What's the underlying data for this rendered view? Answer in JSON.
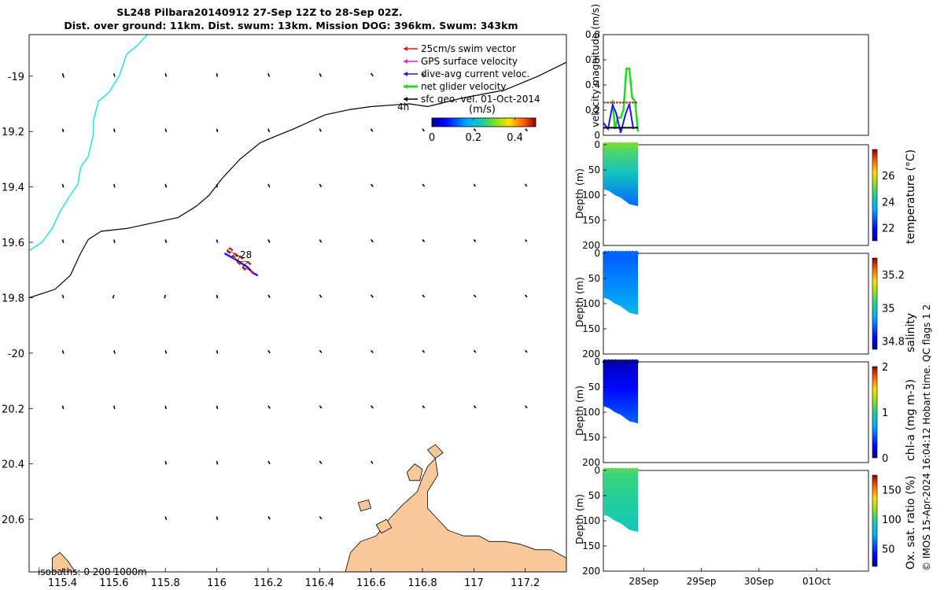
{
  "title": {
    "line1": "SL248 Pilbara20140912 27-Sep 12Z to 28-Sep 02Z.",
    "line2": "Dist. over ground: 11km. Dist. swum: 13km. Mission DOG: 396km. Swum: 343km"
  },
  "footer": "© IMOS 15-Apr-2024 16:04:12 Hobart time. QC flags 1  2",
  "colors": {
    "sst_contour": "#33e0e0",
    "track_red": "#ee1111",
    "track_blue": "#1a1aee",
    "net_green": "#22dd22",
    "land": "#f9c89b",
    "gps_magenta": "#dd22dd"
  },
  "chart_data": [
    {
      "type": "map",
      "name": "glider-track-map",
      "xlim": [
        115.27,
        117.36
      ],
      "ylim": [
        -20.79,
        -18.85
      ],
      "x_ticks": [
        115.4,
        115.6,
        115.8,
        116,
        116.2,
        116.4,
        116.6,
        116.8,
        117,
        117.2
      ],
      "x_tick_labels": [
        "115.4",
        "115.6",
        "115.8",
        "116",
        "116.2",
        "116.4",
        "116.6",
        "116.8",
        "117",
        "117.2"
      ],
      "y_ticks": [
        -19,
        -19.2,
        -19.4,
        -19.6,
        -19.8,
        -20,
        -20.2,
        -20.4,
        -20.6
      ],
      "y_tick_labels": [
        "-19",
        "19.2",
        "19.4",
        "19.6",
        "19.8",
        "-20",
        "20.2",
        "20.4",
        "20.6"
      ],
      "legend": [
        {
          "label": "25cm/s swim vector",
          "color": "#ee1111"
        },
        {
          "label": "GPS surface velocity",
          "color": "#dd22dd"
        },
        {
          "label": "dive-avg current veloc.",
          "color": "#1a1aee"
        },
        {
          "label": "net glider velocity",
          "color": "#22dd22"
        },
        {
          "label": "sfc geo. vel. 01-Oct-2014",
          "color": "#000000"
        }
      ],
      "colorbar": {
        "label": "(m/s)",
        "ticks": [
          "0",
          "0.2",
          "0.4"
        ],
        "range": [
          0,
          0.5
        ]
      },
      "annotations": {
        "time_label": "4h",
        "day_label": "28",
        "isobaths": "isobaths: 0   200   1000m"
      },
      "black_contour": [
        [
          115.27,
          -19.8
        ],
        [
          115.37,
          -19.77
        ],
        [
          115.43,
          -19.72
        ],
        [
          115.47,
          -19.64
        ],
        [
          115.5,
          -19.59
        ],
        [
          115.55,
          -19.56
        ],
        [
          115.65,
          -19.55
        ],
        [
          115.75,
          -19.53
        ],
        [
          115.85,
          -19.51
        ],
        [
          115.92,
          -19.47
        ],
        [
          115.97,
          -19.43
        ],
        [
          116.02,
          -19.37
        ],
        [
          116.09,
          -19.3
        ],
        [
          116.17,
          -19.24
        ],
        [
          116.22,
          -19.22
        ],
        [
          116.3,
          -19.19
        ],
        [
          116.42,
          -19.14
        ],
        [
          116.52,
          -19.12
        ],
        [
          116.6,
          -19.11
        ],
        [
          116.75,
          -19.1
        ],
        [
          116.82,
          -19.11
        ],
        [
          116.95,
          -19.08
        ],
        [
          117.12,
          -19.05
        ],
        [
          117.25,
          -19.0
        ],
        [
          117.36,
          -18.95
        ]
      ],
      "cyan_contour": [
        [
          115.27,
          -19.63
        ],
        [
          115.32,
          -19.6
        ],
        [
          115.36,
          -19.55
        ],
        [
          115.39,
          -19.49
        ],
        [
          115.43,
          -19.43
        ],
        [
          115.46,
          -19.39
        ],
        [
          115.47,
          -19.33
        ],
        [
          115.5,
          -19.29
        ],
        [
          115.52,
          -19.21
        ],
        [
          115.52,
          -19.16
        ],
        [
          115.54,
          -19.09
        ],
        [
          115.58,
          -19.06
        ],
        [
          115.62,
          -19.0
        ],
        [
          115.65,
          -18.92
        ],
        [
          115.69,
          -18.89
        ],
        [
          115.73,
          -18.85
        ]
      ],
      "glider_red": [
        [
          116.05,
          -19.62
        ],
        [
          116.04,
          -19.63
        ],
        [
          116.07,
          -19.64
        ],
        [
          116.06,
          -19.65
        ],
        [
          116.09,
          -19.65
        ],
        [
          116.08,
          -19.67
        ],
        [
          116.12,
          -19.67
        ],
        [
          116.1,
          -19.69
        ],
        [
          116.13,
          -19.7
        ]
      ],
      "glider_blue": [
        [
          116.03,
          -19.64
        ],
        [
          116.07,
          -19.66
        ],
        [
          116.12,
          -19.69
        ],
        [
          116.14,
          -19.71
        ],
        [
          116.16,
          -19.72
        ]
      ],
      "vectors": [
        [
          115.4,
          -18.99,
          0.005,
          -0.015
        ],
        [
          115.6,
          -18.99,
          0.003,
          -0.012
        ],
        [
          115.8,
          -18.99,
          0.004,
          -0.012
        ],
        [
          116,
          -18.99,
          0.002,
          -0.012
        ],
        [
          116.2,
          -18.99,
          0.004,
          -0.012
        ],
        [
          116.4,
          -18.99,
          0.006,
          -0.012
        ],
        [
          116.6,
          -18.99,
          0.008,
          -0.01
        ],
        [
          116.8,
          -18.99,
          0.007,
          -0.009
        ],
        [
          115.4,
          -19.19,
          0.004,
          -0.012
        ],
        [
          115.6,
          -19.19,
          0.003,
          -0.012
        ],
        [
          115.8,
          -19.19,
          0.004,
          -0.012
        ],
        [
          116,
          -19.19,
          0.003,
          -0.012
        ],
        [
          116.2,
          -19.19,
          0.005,
          -0.012
        ],
        [
          116.4,
          -19.19,
          0.006,
          -0.01
        ],
        [
          116.6,
          -19.19,
          0.006,
          -0.01
        ],
        [
          116.8,
          -19.19,
          0.007,
          -0.009
        ],
        [
          117,
          -19.19,
          0.008,
          -0.008
        ],
        [
          117.2,
          -19.19,
          0.008,
          -0.008
        ],
        [
          115.4,
          -19.39,
          0.004,
          -0.012
        ],
        [
          115.6,
          -19.39,
          0.003,
          -0.012
        ],
        [
          115.8,
          -19.39,
          0.004,
          -0.012
        ],
        [
          116,
          -19.39,
          0.002,
          -0.012
        ],
        [
          116.2,
          -19.39,
          0.006,
          -0.011
        ],
        [
          116.4,
          -19.39,
          0.007,
          -0.01
        ],
        [
          116.6,
          -19.39,
          0.008,
          -0.009
        ],
        [
          116.8,
          -19.39,
          0.008,
          -0.008
        ],
        [
          117,
          -19.39,
          0.006,
          -0.008
        ],
        [
          117.2,
          -19.39,
          0.006,
          -0.008
        ],
        [
          115.4,
          -19.59,
          0.004,
          -0.012
        ],
        [
          115.6,
          -19.59,
          0.003,
          -0.012
        ],
        [
          115.8,
          -19.59,
          0.004,
          -0.012
        ],
        [
          116,
          -19.59,
          0.003,
          -0.012
        ],
        [
          116.2,
          -19.59,
          0.006,
          -0.011
        ],
        [
          116.4,
          -19.59,
          0.007,
          -0.01
        ],
        [
          116.6,
          -19.59,
          0.008,
          -0.009
        ],
        [
          116.8,
          -19.59,
          0.008,
          -0.008
        ],
        [
          117,
          -19.59,
          0.007,
          -0.008
        ],
        [
          117.2,
          -19.59,
          0.006,
          -0.008
        ],
        [
          115.4,
          -19.79,
          0.004,
          -0.012
        ],
        [
          115.6,
          -19.79,
          -0.004,
          -0.012
        ],
        [
          115.8,
          -19.79,
          -0.003,
          -0.012
        ],
        [
          116,
          -19.79,
          0.003,
          -0.012
        ],
        [
          116.2,
          -19.79,
          0.007,
          -0.01
        ],
        [
          116.4,
          -19.79,
          0.008,
          -0.009
        ],
        [
          116.6,
          -19.79,
          0.008,
          -0.009
        ],
        [
          116.8,
          -19.79,
          0.008,
          -0.008
        ],
        [
          117,
          -19.79,
          0.008,
          -0.008
        ],
        [
          117.2,
          -19.79,
          0.007,
          -0.008
        ],
        [
          115.4,
          -19.99,
          0.004,
          -0.012
        ],
        [
          115.6,
          -19.99,
          0.004,
          -0.012
        ],
        [
          115.8,
          -19.99,
          0.004,
          -0.012
        ],
        [
          116,
          -19.99,
          0.003,
          -0.012
        ],
        [
          116.2,
          -19.99,
          0.007,
          -0.01
        ],
        [
          116.4,
          -19.99,
          0.008,
          -0.009
        ],
        [
          116.6,
          -19.99,
          0.008,
          -0.009
        ],
        [
          116.8,
          -19.99,
          0.008,
          -0.008
        ],
        [
          117,
          -19.99,
          0.008,
          -0.008
        ],
        [
          117.2,
          -19.99,
          0.007,
          -0.008
        ],
        [
          115.4,
          -20.19,
          0.004,
          -0.012
        ],
        [
          115.6,
          -20.19,
          0.003,
          -0.012
        ],
        [
          115.8,
          -20.19,
          0.003,
          -0.012
        ],
        [
          116,
          -20.19,
          0.003,
          -0.012
        ],
        [
          116.2,
          -20.19,
          0.007,
          -0.01
        ],
        [
          116.4,
          -20.19,
          0.008,
          -0.009
        ],
        [
          116.6,
          -20.19,
          0.008,
          -0.009
        ],
        [
          116.8,
          -20.19,
          0.008,
          -0.008
        ],
        [
          117,
          -20.19,
          0.008,
          -0.008
        ],
        [
          117.2,
          -20.19,
          0.007,
          -0.008
        ],
        [
          115.8,
          -20.39,
          0.004,
          -0.012
        ],
        [
          116,
          -20.39,
          0.003,
          -0.012
        ],
        [
          116.2,
          -20.39,
          0.007,
          -0.01
        ],
        [
          116.4,
          -20.39,
          0.008,
          -0.009
        ],
        [
          116.6,
          -20.39,
          0.007,
          -0.009
        ],
        [
          115.8,
          -20.59,
          0.004,
          -0.012
        ],
        [
          116,
          -20.59,
          0.003,
          -0.012
        ],
        [
          116.2,
          -20.59,
          0.007,
          -0.01
        ],
        [
          116.4,
          -20.59,
          0.008,
          -0.009
        ]
      ],
      "land": [
        [
          [
            116.5,
            -20.79
          ],
          [
            116.52,
            -20.72
          ],
          [
            116.56,
            -20.68
          ],
          [
            116.62,
            -20.66
          ],
          [
            116.67,
            -20.6
          ],
          [
            116.72,
            -20.55
          ],
          [
            116.78,
            -20.5
          ],
          [
            116.8,
            -20.45
          ],
          [
            116.82,
            -20.41
          ],
          [
            116.85,
            -20.38
          ],
          [
            116.86,
            -20.44
          ],
          [
            116.82,
            -20.5
          ],
          [
            116.82,
            -20.56
          ],
          [
            116.86,
            -20.6
          ],
          [
            116.9,
            -20.64
          ],
          [
            116.96,
            -20.66
          ],
          [
            117.02,
            -20.66
          ],
          [
            117.06,
            -20.68
          ],
          [
            117.12,
            -20.68
          ],
          [
            117.18,
            -20.69
          ],
          [
            117.24,
            -20.71
          ],
          [
            117.3,
            -20.71
          ],
          [
            117.36,
            -20.74
          ],
          [
            117.36,
            -20.79
          ]
        ],
        [
          [
            115.36,
            -20.79
          ],
          [
            115.36,
            -20.74
          ],
          [
            115.39,
            -20.72
          ],
          [
            115.42,
            -20.75
          ],
          [
            115.45,
            -20.79
          ]
        ],
        [
          [
            116.74,
            -20.43
          ],
          [
            116.77,
            -20.4
          ],
          [
            116.8,
            -20.42
          ],
          [
            116.79,
            -20.46
          ],
          [
            116.75,
            -20.46
          ]
        ],
        [
          [
            116.62,
            -20.62
          ],
          [
            116.66,
            -20.6
          ],
          [
            116.68,
            -20.63
          ],
          [
            116.64,
            -20.65
          ]
        ],
        [
          [
            116.55,
            -20.54
          ],
          [
            116.59,
            -20.53
          ],
          [
            116.6,
            -20.56
          ],
          [
            116.56,
            -20.57
          ]
        ],
        [
          [
            116.82,
            -20.35
          ],
          [
            116.85,
            -20.33
          ],
          [
            116.88,
            -20.36
          ],
          [
            116.85,
            -20.38
          ]
        ]
      ]
    },
    {
      "type": "line",
      "name": "velocity-panel",
      "ylabel": "velocity magnitude (m/s)",
      "ylim": [
        0,
        0.8
      ],
      "y_ticks": [
        0,
        0.2,
        0.4,
        0.6,
        0.8
      ],
      "y_tick_labels": [
        "0",
        "0.2",
        "0.4",
        "0.6",
        "0.8"
      ],
      "xlim": [
        0,
        4.6
      ],
      "series": [
        {
          "name": "net glider velocity",
          "color": "#22dd22",
          "x": [
            0.16,
            0.2,
            0.25,
            0.3,
            0.35,
            0.4,
            0.45,
            0.5,
            0.55,
            0.6
          ],
          "y": [
            0.28,
            0.05,
            0.14,
            0.14,
            0.2,
            0.53,
            0.53,
            0.3,
            0.27,
            0.03
          ]
        },
        {
          "name": "dive-avg current",
          "color": "#1a1aee",
          "x": [
            0.0,
            0.08,
            0.16,
            0.22,
            0.3,
            0.38,
            0.45,
            0.52
          ],
          "y": [
            0.1,
            0.05,
            0.24,
            0.18,
            0.02,
            0.16,
            0.25,
            0.05
          ]
        },
        {
          "name": "swim vector",
          "color": "#ee1111",
          "x": [
            0.0,
            0.6
          ],
          "y": [
            0.26,
            0.26
          ]
        },
        {
          "name": "sfc geo vel",
          "color": "#000000",
          "x": [
            0.0,
            0.6
          ],
          "y": [
            0.06,
            0.06
          ]
        }
      ]
    },
    {
      "type": "heatmap",
      "name": "temperature-panel",
      "ylabel": "Depth (m)",
      "cbar_label": "temperature (°C)",
      "ylim": [
        0,
        200
      ],
      "y_ticks": [
        0,
        50,
        100,
        150,
        200
      ],
      "y_tick_labels": [
        "0",
        "50",
        "100",
        "150",
        "200"
      ],
      "cbar_range": [
        21,
        28
      ],
      "cbar_ticks": [
        "22",
        "24",
        "26"
      ],
      "cbar_tick_values": [
        22,
        24,
        26
      ],
      "surface_value": 25.0,
      "deep_value": 22.8
    },
    {
      "type": "heatmap",
      "name": "salinity-panel",
      "ylabel": "Depth (m)",
      "cbar_label": "salinity",
      "ylim": [
        0,
        200
      ],
      "y_ticks": [
        0,
        50,
        100,
        150,
        200
      ],
      "y_tick_labels": [
        "0",
        "50",
        "100",
        "150",
        "200"
      ],
      "cbar_range": [
        34.75,
        35.3
      ],
      "cbar_ticks": [
        "34.8",
        "35",
        "35.2"
      ],
      "cbar_tick_values": [
        34.8,
        35,
        35.2
      ],
      "surface_value": 34.88,
      "deep_value": 34.96
    },
    {
      "type": "heatmap",
      "name": "chla-panel",
      "ylabel": "Depth (m)",
      "cbar_label": "chl-a (mg m-3)",
      "ylim": [
        0,
        200
      ],
      "y_ticks": [
        0,
        50,
        100,
        150,
        200
      ],
      "y_tick_labels": [
        "0",
        "50",
        "100",
        "150",
        "200"
      ],
      "cbar_range": [
        0,
        2
      ],
      "cbar_ticks": [
        "0",
        "1",
        "2"
      ],
      "cbar_tick_values": [
        0,
        1,
        2
      ],
      "surface_value": 0.1,
      "deep_value": 0.5
    },
    {
      "type": "heatmap",
      "name": "oxygen-panel",
      "ylabel": "Depth (m)",
      "cbar_label": "Ox. sat. ratio (%)",
      "ylim": [
        0,
        200
      ],
      "y_ticks": [
        0,
        50,
        100,
        150,
        200
      ],
      "y_tick_labels": [
        "0",
        "50",
        "100",
        "150",
        "200"
      ],
      "cbar_range": [
        20,
        175
      ],
      "cbar_ticks": [
        "50",
        "100",
        "150"
      ],
      "cbar_tick_values": [
        50,
        100,
        150
      ],
      "surface_value": 103,
      "deep_value": 90
    },
    {
      "type": "time-axis",
      "name": "shared-time-axis",
      "ticks": [
        "28Sep",
        "29Sep",
        "30Sep",
        "01Oct"
      ],
      "tick_days": [
        0.7,
        1.7,
        2.7,
        3.7
      ]
    }
  ]
}
